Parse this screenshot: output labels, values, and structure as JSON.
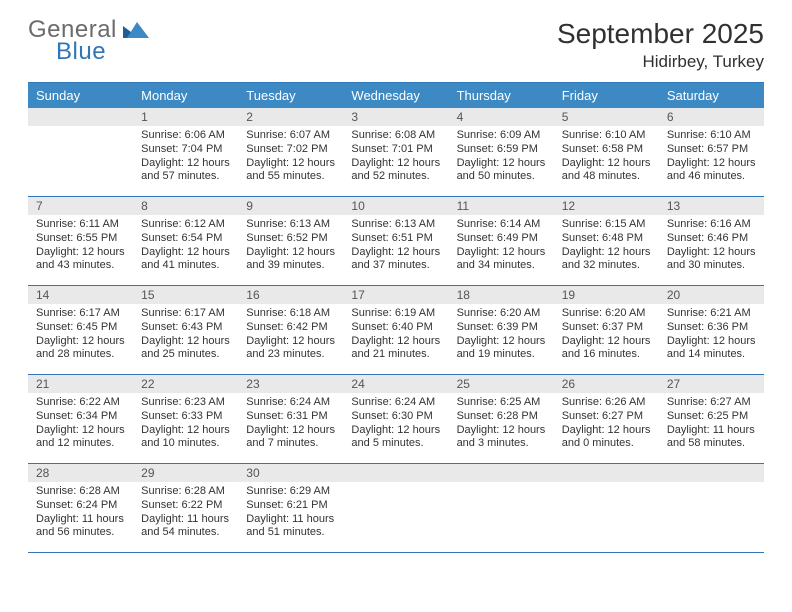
{
  "brand": {
    "word1": "General",
    "word2": "Blue"
  },
  "title": "September 2025",
  "subtitle": "Hidirbey, Turkey",
  "colors": {
    "header_bg": "#3d89c3",
    "rule": "#2f77b6",
    "daynum_bg": "#e9e9e9",
    "text": "#333333",
    "title": "#313131",
    "logo_gray": "#6b6b6b",
    "logo_blue": "#2f77b6"
  },
  "fontsizes": {
    "title": 28,
    "subtitle": 17,
    "dayheader": 13,
    "daynum": 12,
    "body": 11
  },
  "day_names": [
    "Sunday",
    "Monday",
    "Tuesday",
    "Wednesday",
    "Thursday",
    "Friday",
    "Saturday"
  ],
  "weeks": [
    [
      null,
      {
        "n": "1",
        "sr": "6:06 AM",
        "ss": "7:04 PM",
        "dl": "12 hours and 57 minutes."
      },
      {
        "n": "2",
        "sr": "6:07 AM",
        "ss": "7:02 PM",
        "dl": "12 hours and 55 minutes."
      },
      {
        "n": "3",
        "sr": "6:08 AM",
        "ss": "7:01 PM",
        "dl": "12 hours and 52 minutes."
      },
      {
        "n": "4",
        "sr": "6:09 AM",
        "ss": "6:59 PM",
        "dl": "12 hours and 50 minutes."
      },
      {
        "n": "5",
        "sr": "6:10 AM",
        "ss": "6:58 PM",
        "dl": "12 hours and 48 minutes."
      },
      {
        "n": "6",
        "sr": "6:10 AM",
        "ss": "6:57 PM",
        "dl": "12 hours and 46 minutes."
      }
    ],
    [
      {
        "n": "7",
        "sr": "6:11 AM",
        "ss": "6:55 PM",
        "dl": "12 hours and 43 minutes."
      },
      {
        "n": "8",
        "sr": "6:12 AM",
        "ss": "6:54 PM",
        "dl": "12 hours and 41 minutes."
      },
      {
        "n": "9",
        "sr": "6:13 AM",
        "ss": "6:52 PM",
        "dl": "12 hours and 39 minutes."
      },
      {
        "n": "10",
        "sr": "6:13 AM",
        "ss": "6:51 PM",
        "dl": "12 hours and 37 minutes."
      },
      {
        "n": "11",
        "sr": "6:14 AM",
        "ss": "6:49 PM",
        "dl": "12 hours and 34 minutes."
      },
      {
        "n": "12",
        "sr": "6:15 AM",
        "ss": "6:48 PM",
        "dl": "12 hours and 32 minutes."
      },
      {
        "n": "13",
        "sr": "6:16 AM",
        "ss": "6:46 PM",
        "dl": "12 hours and 30 minutes."
      }
    ],
    [
      {
        "n": "14",
        "sr": "6:17 AM",
        "ss": "6:45 PM",
        "dl": "12 hours and 28 minutes."
      },
      {
        "n": "15",
        "sr": "6:17 AM",
        "ss": "6:43 PM",
        "dl": "12 hours and 25 minutes."
      },
      {
        "n": "16",
        "sr": "6:18 AM",
        "ss": "6:42 PM",
        "dl": "12 hours and 23 minutes."
      },
      {
        "n": "17",
        "sr": "6:19 AM",
        "ss": "6:40 PM",
        "dl": "12 hours and 21 minutes."
      },
      {
        "n": "18",
        "sr": "6:20 AM",
        "ss": "6:39 PM",
        "dl": "12 hours and 19 minutes."
      },
      {
        "n": "19",
        "sr": "6:20 AM",
        "ss": "6:37 PM",
        "dl": "12 hours and 16 minutes."
      },
      {
        "n": "20",
        "sr": "6:21 AM",
        "ss": "6:36 PM",
        "dl": "12 hours and 14 minutes."
      }
    ],
    [
      {
        "n": "21",
        "sr": "6:22 AM",
        "ss": "6:34 PM",
        "dl": "12 hours and 12 minutes."
      },
      {
        "n": "22",
        "sr": "6:23 AM",
        "ss": "6:33 PM",
        "dl": "12 hours and 10 minutes."
      },
      {
        "n": "23",
        "sr": "6:24 AM",
        "ss": "6:31 PM",
        "dl": "12 hours and 7 minutes."
      },
      {
        "n": "24",
        "sr": "6:24 AM",
        "ss": "6:30 PM",
        "dl": "12 hours and 5 minutes."
      },
      {
        "n": "25",
        "sr": "6:25 AM",
        "ss": "6:28 PM",
        "dl": "12 hours and 3 minutes."
      },
      {
        "n": "26",
        "sr": "6:26 AM",
        "ss": "6:27 PM",
        "dl": "12 hours and 0 minutes."
      },
      {
        "n": "27",
        "sr": "6:27 AM",
        "ss": "6:25 PM",
        "dl": "11 hours and 58 minutes."
      }
    ],
    [
      {
        "n": "28",
        "sr": "6:28 AM",
        "ss": "6:24 PM",
        "dl": "11 hours and 56 minutes."
      },
      {
        "n": "29",
        "sr": "6:28 AM",
        "ss": "6:22 PM",
        "dl": "11 hours and 54 minutes."
      },
      {
        "n": "30",
        "sr": "6:29 AM",
        "ss": "6:21 PM",
        "dl": "11 hours and 51 minutes."
      },
      null,
      null,
      null,
      null
    ]
  ],
  "labels": {
    "sunrise": "Sunrise:",
    "sunset": "Sunset:",
    "daylight": "Daylight:"
  }
}
